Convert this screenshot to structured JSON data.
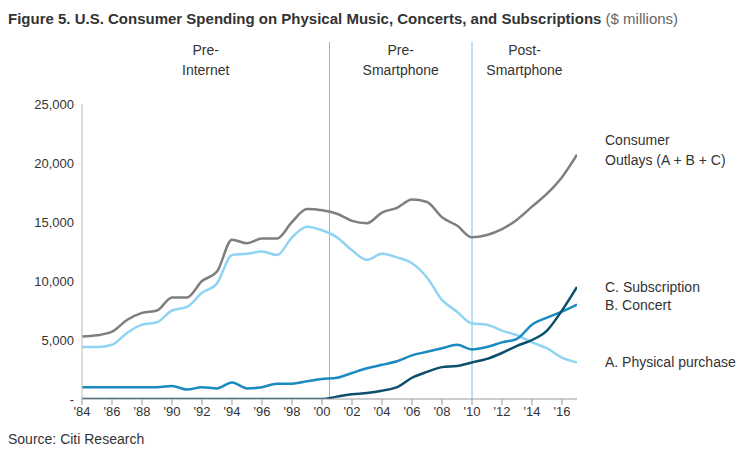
{
  "chart_data": {
    "type": "line",
    "title": "Figure 5. U.S. Consumer Spending on Physical Music, Concerts, and Subscriptions",
    "subtitle": "($ millions)",
    "source": "Source: Citi Research",
    "x": [
      1984,
      1985,
      1986,
      1987,
      1988,
      1989,
      1990,
      1991,
      1992,
      1993,
      1994,
      1995,
      1996,
      1997,
      1998,
      1999,
      2000,
      2001,
      2002,
      2003,
      2004,
      2005,
      2006,
      2007,
      2008,
      2009,
      2010,
      2011,
      2012,
      2013,
      2014,
      2015,
      2016,
      2017
    ],
    "xlim": [
      1984,
      2017
    ],
    "xticks": [
      {
        "value": 1984,
        "label": "'84"
      },
      {
        "value": 1986,
        "label": "'86"
      },
      {
        "value": 1988,
        "label": "'88"
      },
      {
        "value": 1990,
        "label": "'90"
      },
      {
        "value": 1992,
        "label": "'92"
      },
      {
        "value": 1994,
        "label": "'94"
      },
      {
        "value": 1996,
        "label": "'96"
      },
      {
        "value": 1998,
        "label": "'98"
      },
      {
        "value": 2000,
        "label": "'00"
      },
      {
        "value": 2002,
        "label": "'02"
      },
      {
        "value": 2004,
        "label": "'04"
      },
      {
        "value": 2006,
        "label": "'06"
      },
      {
        "value": 2008,
        "label": "'08"
      },
      {
        "value": 2010,
        "label": "'10"
      },
      {
        "value": 2012,
        "label": "'12"
      },
      {
        "value": 2014,
        "label": "'14"
      },
      {
        "value": 2016,
        "label": "'16"
      }
    ],
    "ylim": [
      0,
      25000
    ],
    "yticks": [
      {
        "value": 0,
        "label": "-"
      },
      {
        "value": 5000,
        "label": "5,000"
      },
      {
        "value": 10000,
        "label": "10,000"
      },
      {
        "value": 15000,
        "label": "15,000"
      },
      {
        "value": 20000,
        "label": "20,000"
      },
      {
        "value": 25000,
        "label": "25,000"
      }
    ],
    "grid": false,
    "series": [
      {
        "name": "Consumer Outlays (A + B + C)",
        "color": "#7f7f7f",
        "values": [
          5300,
          5400,
          5700,
          6700,
          7300,
          7500,
          8600,
          8600,
          10000,
          10800,
          13500,
          13200,
          13600,
          13600,
          15000,
          16100,
          16000,
          15700,
          15100,
          14900,
          15800,
          16200,
          16900,
          16700,
          15400,
          14700,
          13700,
          13900,
          14400,
          15200,
          16300,
          17400,
          18800,
          20700
        ]
      },
      {
        "name": "C. Subscription",
        "color": "#0b4f6c",
        "values": [
          0,
          0,
          0,
          0,
          0,
          0,
          0,
          0,
          0,
          0,
          0,
          0,
          0,
          0,
          0,
          0,
          0,
          200,
          400,
          500,
          700,
          1000,
          1800,
          2300,
          2700,
          2800,
          3100,
          3400,
          3900,
          4500,
          5000,
          5800,
          7500,
          9500
        ]
      },
      {
        "name": "B. Concert",
        "color": "#1a8bc0",
        "values": [
          1000,
          1000,
          1000,
          1000,
          1000,
          1000,
          1100,
          800,
          1000,
          900,
          1400,
          900,
          1000,
          1300,
          1300,
          1500,
          1700,
          1800,
          2200,
          2600,
          2900,
          3200,
          3700,
          4000,
          4300,
          4600,
          4200,
          4400,
          4800,
          5100,
          6300,
          6900,
          7400,
          8000
        ]
      },
      {
        "name": "A. Physical purchase",
        "color": "#8fd4f2",
        "values": [
          4400,
          4400,
          4600,
          5600,
          6300,
          6500,
          7500,
          7800,
          9000,
          9800,
          12200,
          12300,
          12500,
          12200,
          13700,
          14600,
          14300,
          13700,
          12600,
          11800,
          12300,
          12000,
          11500,
          10300,
          8400,
          7400,
          6400,
          6300,
          5800,
          5400,
          4800,
          4300,
          3500,
          3100
        ]
      }
    ],
    "periods": [
      {
        "label": "Pre-Internet",
        "from": 1984,
        "to": 2000.5
      },
      {
        "label": "Pre-Smartphone",
        "from": 2000.5,
        "to": 2010
      },
      {
        "label": "Post-Smartphone",
        "from": 2010,
        "to": 2017
      }
    ],
    "dividers": [
      2000.5,
      2010
    ]
  }
}
